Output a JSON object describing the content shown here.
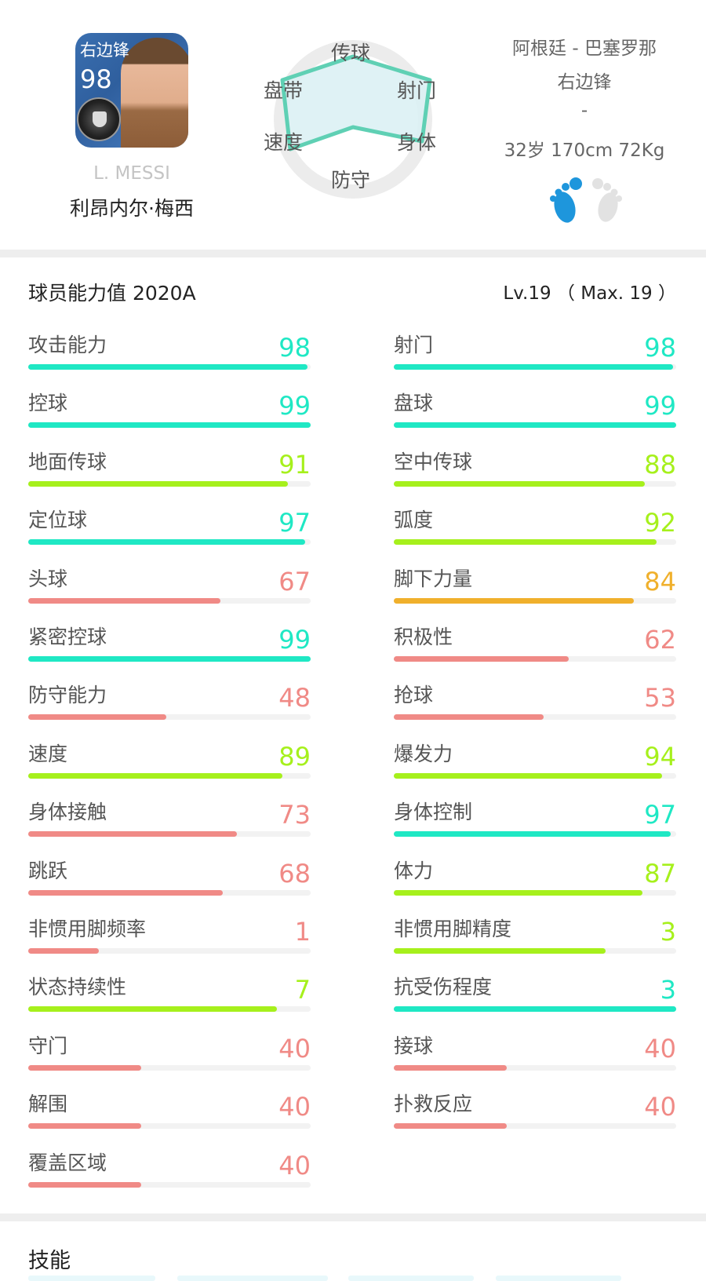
{
  "player": {
    "card_position": "右边锋",
    "card_rating": "98",
    "english_name": "L. MESSI",
    "chinese_name": "利昂内尔·梅西",
    "nationality_club": "阿根廷 - 巴塞罗那",
    "position": "右边锋",
    "extra": "-",
    "physical": "32岁 170cm 72Kg",
    "strong_foot": "left",
    "colors": {
      "foot_active": "#1e96dc",
      "foot_inactive": "#e2e2e2"
    }
  },
  "radar": {
    "labels": {
      "top": "传球",
      "top_right": "射门",
      "bottom_right": "身体",
      "bottom": "防守",
      "bottom_left": "速度",
      "top_left": "盘带"
    },
    "stroke": "#5fd0b4",
    "fill": "#dcf1f4"
  },
  "abilities": {
    "title": "球员能力值 2020A",
    "level": "Lv.19 （ Max. 19 ）",
    "colors": {
      "teal": "#1fe8c4",
      "green": "#a6f01c",
      "orange": "#f0b02c",
      "red": "#f08a86"
    },
    "left": [
      {
        "label": "攻击能力",
        "value": "98",
        "pct": 99,
        "color": "teal"
      },
      {
        "label": "控球",
        "value": "99",
        "pct": 100,
        "color": "teal"
      },
      {
        "label": "地面传球",
        "value": "91",
        "pct": 92,
        "color": "green"
      },
      {
        "label": "定位球",
        "value": "97",
        "pct": 98,
        "color": "teal"
      },
      {
        "label": "头球",
        "value": "67",
        "pct": 68,
        "color": "red"
      },
      {
        "label": "紧密控球",
        "value": "99",
        "pct": 100,
        "color": "teal"
      },
      {
        "label": "防守能力",
        "value": "48",
        "pct": 49,
        "color": "red"
      },
      {
        "label": "速度",
        "value": "89",
        "pct": 90,
        "color": "green"
      },
      {
        "label": "身体接触",
        "value": "73",
        "pct": 74,
        "color": "red"
      },
      {
        "label": "跳跃",
        "value": "68",
        "pct": 69,
        "color": "red"
      },
      {
        "label": "非惯用脚频率",
        "value": "1",
        "pct": 25,
        "color": "red"
      },
      {
        "label": "状态持续性",
        "value": "7",
        "pct": 88,
        "color": "green"
      },
      {
        "label": "守门",
        "value": "40",
        "pct": 40,
        "color": "red"
      },
      {
        "label": "解围",
        "value": "40",
        "pct": 40,
        "color": "red"
      },
      {
        "label": "覆盖区域",
        "value": "40",
        "pct": 40,
        "color": "red"
      }
    ],
    "right": [
      {
        "label": "射门",
        "value": "98",
        "pct": 99,
        "color": "teal"
      },
      {
        "label": "盘球",
        "value": "99",
        "pct": 100,
        "color": "teal"
      },
      {
        "label": "空中传球",
        "value": "88",
        "pct": 89,
        "color": "green"
      },
      {
        "label": "弧度",
        "value": "92",
        "pct": 93,
        "color": "green"
      },
      {
        "label": "脚下力量",
        "value": "84",
        "pct": 85,
        "color": "orange"
      },
      {
        "label": "积极性",
        "value": "62",
        "pct": 62,
        "color": "red"
      },
      {
        "label": "抢球",
        "value": "53",
        "pct": 53,
        "color": "red"
      },
      {
        "label": "爆发力",
        "value": "94",
        "pct": 95,
        "color": "green"
      },
      {
        "label": "身体控制",
        "value": "97",
        "pct": 98,
        "color": "teal"
      },
      {
        "label": "体力",
        "value": "87",
        "pct": 88,
        "color": "green"
      },
      {
        "label": "非惯用脚精度",
        "value": "3",
        "pct": 75,
        "color": "green"
      },
      {
        "label": "抗受伤程度",
        "value": "3",
        "pct": 100,
        "color": "teal"
      },
      {
        "label": "接球",
        "value": "40",
        "pct": 40,
        "color": "red"
      },
      {
        "label": "扑救反应",
        "value": "40",
        "pct": 40,
        "color": "red"
      }
    ]
  },
  "skills": {
    "title": "技能"
  }
}
